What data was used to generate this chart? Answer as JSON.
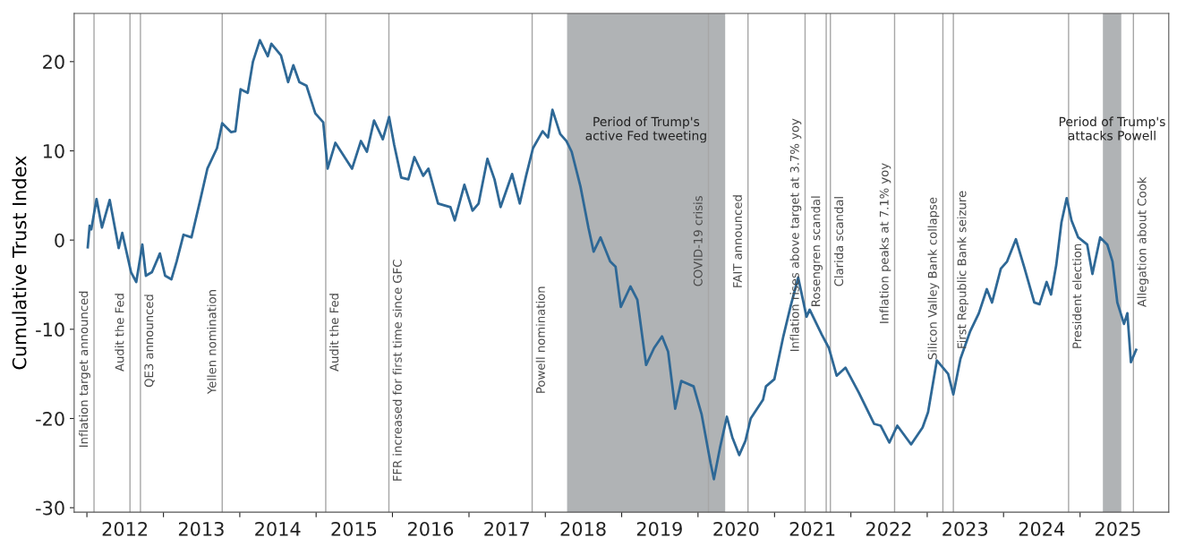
{
  "chart_data": {
    "type": "line",
    "ylabel": "Cumulative Trust Index",
    "x": [
      "2012-01-05",
      "2012-01-14",
      "2012-01-22",
      "2012-02-16",
      "2012-03-13",
      "2012-04-19",
      "2012-06-01",
      "2012-06-18",
      "2012-07-30",
      "2012-08-24",
      "2012-09-22",
      "2012-10-09",
      "2012-11-07",
      "2012-12-15",
      "2013-01-09",
      "2013-02-08",
      "2013-03-05",
      "2013-04-07",
      "2013-05-15",
      "2013-06-26",
      "2013-07-30",
      "2013-09-14",
      "2013-10-09",
      "2013-11-20",
      "2013-12-11",
      "2014-01-05",
      "2014-02-08",
      "2014-03-05",
      "2014-04-07",
      "2014-05-15",
      "2014-06-01",
      "2014-07-17",
      "2014-08-20",
      "2014-09-14",
      "2014-10-13",
      "2014-11-16",
      "2014-12-28",
      "2015-02-04",
      "2015-02-25",
      "2015-04-03",
      "2015-06-22",
      "2015-08-03",
      "2015-09-01",
      "2015-10-05",
      "2015-11-16",
      "2015-12-16",
      "2016-01-09",
      "2016-02-12",
      "2016-03-17",
      "2016-04-15",
      "2016-05-27",
      "2016-06-21",
      "2016-08-06",
      "2016-10-04",
      "2016-10-25",
      "2016-12-10",
      "2017-01-18",
      "2017-02-16",
      "2017-03-30",
      "2017-05-03",
      "2017-06-01",
      "2017-07-26",
      "2017-09-01",
      "2017-10-01",
      "2017-11-03",
      "2017-12-19",
      "2018-01-14",
      "2018-02-04",
      "2018-03-13",
      "2018-04-12",
      "2018-05-07",
      "2018-06-18",
      "2018-07-26",
      "2018-08-20",
      "2018-09-22",
      "2018-11-07",
      "2018-12-03",
      "2018-12-28",
      "2019-02-12",
      "2019-03-17",
      "2019-04-28",
      "2019-06-05",
      "2019-07-13",
      "2019-08-11",
      "2019-09-14",
      "2019-10-13",
      "2019-12-11",
      "2020-01-18",
      "2020-03-01",
      "2020-03-17",
      "2020-04-15",
      "2020-05-18",
      "2020-06-13",
      "2020-07-16",
      "2020-08-15",
      "2020-09-09",
      "2020-11-07",
      "2020-11-21",
      "2020-12-31",
      "2021-02-12",
      "2021-03-19",
      "2021-04-24",
      "2021-06-03",
      "2021-06-18",
      "2021-08-15",
      "2021-09-18",
      "2021-10-25",
      "2021-12-06",
      "2022-02-08",
      "2022-04-22",
      "2022-05-23",
      "2022-07-04",
      "2022-08-11",
      "2022-10-16",
      "2022-12-10",
      "2023-01-05",
      "2023-02-16",
      "2023-04-11",
      "2023-05-06",
      "2023-06-09",
      "2023-07-26",
      "2023-09-05",
      "2023-10-13",
      "2023-11-07",
      "2023-12-19",
      "2024-01-18",
      "2024-02-29",
      "2024-04-11",
      "2024-05-27",
      "2024-06-21",
      "2024-07-25",
      "2024-08-15",
      "2024-09-09",
      "2024-10-04",
      "2024-10-29",
      "2024-11-21",
      "2024-12-23",
      "2025-02-04",
      "2025-03-01",
      "2025-04-07",
      "2025-05-11",
      "2025-06-05",
      "2025-06-28",
      "2025-07-30",
      "2025-08-15",
      "2025-09-01",
      "2025-09-26"
    ],
    "series": [
      {
        "color": "#2e6896",
        "values": [
          -0.8,
          1.6,
          1.2,
          4.6,
          1.4,
          4.5,
          -0.9,
          0.8,
          -3.6,
          -4.7,
          -0.5,
          -4.0,
          -3.6,
          -1.5,
          -4.0,
          -4.4,
          -2.4,
          0.6,
          0.3,
          4.5,
          8.0,
          10.3,
          13.1,
          12.1,
          12.2,
          16.9,
          16.5,
          20.0,
          22.4,
          20.6,
          22.0,
          20.7,
          17.7,
          19.6,
          17.7,
          17.3,
          14.2,
          13.2,
          8.0,
          10.9,
          8.0,
          11.1,
          9.9,
          13.4,
          11.3,
          13.8,
          10.7,
          7.0,
          6.8,
          9.3,
          7.2,
          8.0,
          4.1,
          3.7,
          2.2,
          6.2,
          3.3,
          4.1,
          9.1,
          6.8,
          3.7,
          7.4,
          4.1,
          7.2,
          10.3,
          12.2,
          11.5,
          14.6,
          11.9,
          11.1,
          9.9,
          6.0,
          1.4,
          -1.3,
          0.3,
          -2.4,
          -3.0,
          -7.5,
          -5.2,
          -6.7,
          -14.0,
          -12.1,
          -10.8,
          -12.5,
          -18.9,
          -15.8,
          -16.4,
          -19.5,
          -25.0,
          -26.8,
          -23.3,
          -19.8,
          -22.1,
          -24.1,
          -22.5,
          -20.0,
          -17.9,
          -16.4,
          -15.6,
          -10.8,
          -7.4,
          -4.2,
          -8.6,
          -7.8,
          -10.6,
          -12.1,
          -15.2,
          -14.3,
          -17.1,
          -20.6,
          -20.8,
          -22.7,
          -20.8,
          -22.9,
          -21.0,
          -19.3,
          -13.5,
          -15.0,
          -17.3,
          -13.3,
          -10.2,
          -8.2,
          -5.5,
          -7.0,
          -3.2,
          -2.4,
          0.1,
          -3.2,
          -7.0,
          -7.2,
          -4.7,
          -6.1,
          -2.8,
          2.0,
          4.7,
          2.2,
          0.3,
          -0.5,
          -3.8,
          0.3,
          -0.5,
          -2.4,
          -7.0,
          -9.4,
          -8.2,
          -13.7,
          -12.3
        ]
      }
    ],
    "xlim": [
      "2011-11-01",
      "2026-03-01"
    ],
    "xticks": [
      {
        "value": "2012-01-01",
        "label": null
      },
      {
        "value": "2012-07-01",
        "label": "2012"
      },
      {
        "value": "2013-01-01",
        "label": null
      },
      {
        "value": "2013-07-01",
        "label": "2013"
      },
      {
        "value": "2014-01-01",
        "label": null
      },
      {
        "value": "2014-07-01",
        "label": "2014"
      },
      {
        "value": "2015-01-01",
        "label": null
      },
      {
        "value": "2015-07-01",
        "label": "2015"
      },
      {
        "value": "2016-01-01",
        "label": null
      },
      {
        "value": "2016-07-01",
        "label": "2016"
      },
      {
        "value": "2017-01-01",
        "label": null
      },
      {
        "value": "2017-07-01",
        "label": "2017"
      },
      {
        "value": "2018-01-01",
        "label": null
      },
      {
        "value": "2018-07-01",
        "label": "2018"
      },
      {
        "value": "2019-01-01",
        "label": null
      },
      {
        "value": "2019-07-01",
        "label": "2019"
      },
      {
        "value": "2020-01-01",
        "label": null
      },
      {
        "value": "2020-07-01",
        "label": "2020"
      },
      {
        "value": "2021-01-01",
        "label": null
      },
      {
        "value": "2021-07-01",
        "label": "2021"
      },
      {
        "value": "2022-01-01",
        "label": null
      },
      {
        "value": "2022-07-01",
        "label": "2022"
      },
      {
        "value": "2023-01-01",
        "label": null
      },
      {
        "value": "2023-07-01",
        "label": "2023"
      },
      {
        "value": "2024-01-01",
        "label": null
      },
      {
        "value": "2024-07-01",
        "label": "2024"
      },
      {
        "value": "2025-01-01",
        "label": null
      },
      {
        "value": "2025-07-01",
        "label": "2025"
      }
    ],
    "ylim": [
      -30.5,
      25.4
    ],
    "yticks": [
      -30,
      -20,
      -10,
      0,
      10,
      20
    ],
    "ref_lines": [
      {
        "axis": "x",
        "value": "2012-02-04",
        "label": "Inflation target announced",
        "color": "#a6a6a6"
      },
      {
        "axis": "x",
        "value": "2012-07-25",
        "label": "Audit the Fed",
        "color": "#a6a6a6"
      },
      {
        "axis": "x",
        "value": "2012-09-13",
        "label": "QE3 announced",
        "color": "#a6a6a6"
      },
      {
        "axis": "x",
        "value": "2013-10-09",
        "label": "Yellen nomination",
        "color": "#a6a6a6"
      },
      {
        "axis": "x",
        "value": "2015-02-16",
        "label": "Audit the Fed",
        "color": "#a6a6a6"
      },
      {
        "axis": "x",
        "value": "2015-12-15",
        "label": "FFR increased for first time since GFC",
        "color": "#a6a6a6"
      },
      {
        "axis": "x",
        "value": "2017-10-30",
        "label": "Powell nomination",
        "color": "#a6a6a6"
      },
      {
        "axis": "x",
        "value": "2020-02-20",
        "label": "COVID-19 crisis",
        "color": "#a6a6a6"
      },
      {
        "axis": "x",
        "value": "2020-08-27",
        "label": "FAIT announced",
        "color": "#a6a6a6"
      },
      {
        "axis": "x",
        "value": "2021-05-27",
        "label": "Inflation rises above target at 3.7% yoy",
        "color": "#a6a6a6"
      },
      {
        "axis": "x",
        "value": "2021-09-05",
        "label": "Rosengren scandal",
        "color": "#a6a6a6"
      },
      {
        "axis": "x",
        "value": "2021-09-25",
        "label": "Clarida scandal",
        "color": "#a6a6a6"
      },
      {
        "axis": "x",
        "value": "2022-07-29",
        "label": "Inflation peaks at 7.1% yoy",
        "color": "#a6a6a6"
      },
      {
        "axis": "x",
        "value": "2023-03-17",
        "label": "Silicon Valley Bank collapse",
        "color": "#a6a6a6"
      },
      {
        "axis": "x",
        "value": "2023-05-06",
        "label": "First Republic Bank seizure",
        "color": "#a6a6a6"
      },
      {
        "axis": "x",
        "value": "2024-11-07",
        "label": "President election",
        "color": "#a6a6a6"
      },
      {
        "axis": "x",
        "value": "2025-09-13",
        "label": "Allegation about Cook",
        "color": "#a6a6a6"
      }
    ],
    "bands": [
      {
        "axis": "x",
        "from": "2018-04-15",
        "to": "2020-05-10",
        "label": "Period of Trump's\nactive Fed tweeting",
        "color": "#b0b3b5"
      },
      {
        "axis": "x",
        "from": "2025-04-20",
        "to": "2025-07-17",
        "label": "Period of Trump's\nattacks Powell",
        "color": "#b0b3b5"
      }
    ],
    "grid": false,
    "legend": false
  }
}
